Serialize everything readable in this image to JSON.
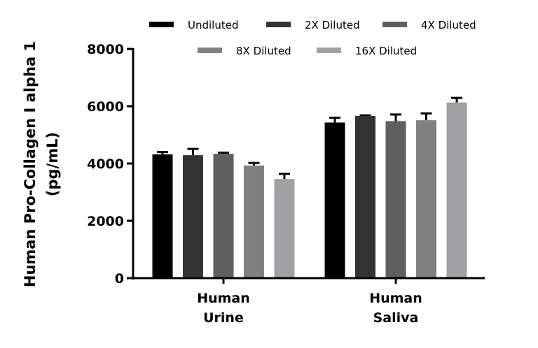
{
  "chart_data": {
    "type": "bar",
    "title": "",
    "xlabel": "",
    "ylabel_lines": [
      "Human Pro-Collagen I alpha 1",
      "(pg/mL)"
    ],
    "ylim": [
      0,
      8000
    ],
    "yticks": [
      "0",
      "2000",
      "4000",
      "6000",
      "8000"
    ],
    "categories": [
      [
        "Human",
        "Urine"
      ],
      [
        "Human",
        "Saliva"
      ]
    ],
    "legend_position": "top",
    "grid": false,
    "series": [
      {
        "name": "Undiluted",
        "color": "#000000",
        "values": [
          4320,
          5430
        ],
        "errors": [
          80,
          170
        ]
      },
      {
        "name": "2X Diluted",
        "color": "#333333",
        "values": [
          4290,
          5660
        ],
        "errors": [
          220,
          20
        ]
      },
      {
        "name": "4X Diluted",
        "color": "#5f5f5f",
        "values": [
          4340,
          5480
        ],
        "errors": [
          40,
          230
        ]
      },
      {
        "name": "8X Diluted",
        "color": "#808080",
        "values": [
          3930,
          5510
        ],
        "errors": [
          90,
          240
        ]
      },
      {
        "name": "16X Diluted",
        "color": "#a1a1a4",
        "values": [
          3460,
          6130
        ],
        "errors": [
          180,
          160
        ]
      }
    ]
  }
}
